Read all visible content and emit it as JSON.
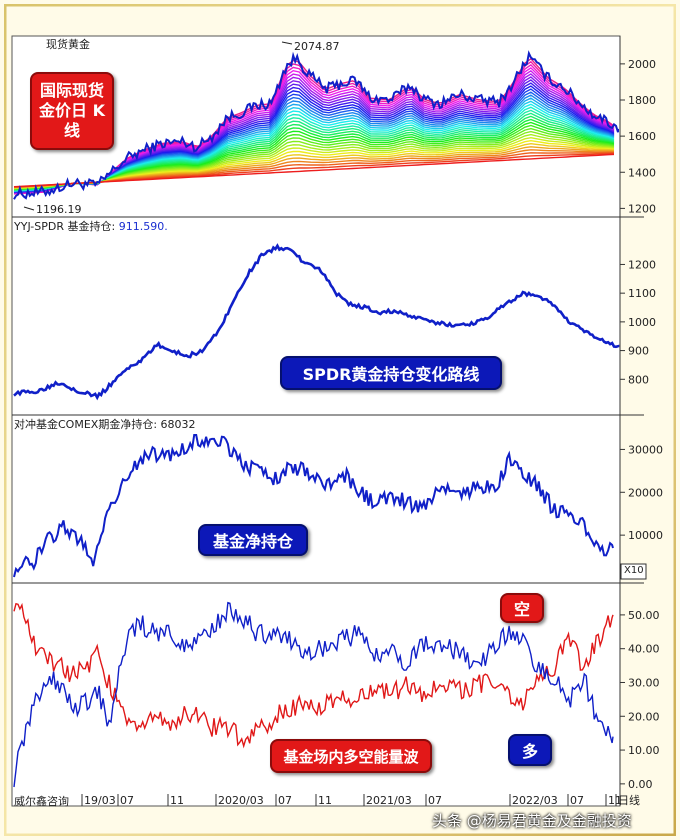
{
  "panels": {
    "gold": {
      "title": "现货黄金",
      "badge": "国际现货金价日 K线",
      "high_label": "2074.87",
      "low_label": "1196.19",
      "yticks": [
        "2000",
        "1800",
        "1600",
        "1400",
        "1200"
      ]
    },
    "spdr": {
      "title_prefix": "YYJ-SPDR 基金持仓:",
      "title_value": "911.590.",
      "badge": "SPDR黄金持仓变化路线",
      "yticks": [
        "1200",
        "1100",
        "1000",
        "900",
        "800"
      ]
    },
    "fund": {
      "title": "对冲基金COMEX期金净持仓: 68032",
      "badge": "基金净持仓",
      "yticks": [
        "30000",
        "20000",
        "10000"
      ],
      "scale_label": "X10"
    },
    "energy": {
      "badge": "基金场内多空能量波",
      "short_label": "空",
      "long_label": "多",
      "yticks": [
        "50.00",
        "40.00",
        "30.00",
        "20.00",
        "10.00",
        "0.00"
      ]
    }
  },
  "xaxis": {
    "source": "威尔鑫咨询",
    "ticks": [
      "19/03",
      "07",
      "11",
      "2020/03",
      "07",
      "11",
      "2021/03",
      "07",
      "2022/03",
      "07",
      "11",
      "日线"
    ]
  },
  "watermark": "头条 @杨易君黄金及金融投资",
  "colors": {
    "price": "#1020c8",
    "short": "#e01818",
    "long": "#1a2fd0"
  },
  "chart_data": [
    {
      "type": "line",
      "title": "现货黄金",
      "ylim": [
        1180,
        2110
      ],
      "x": [
        0,
        30,
        60,
        85,
        100,
        115,
        130,
        150,
        170,
        185,
        200,
        215,
        230,
        245,
        260,
        275,
        285,
        300,
        315,
        330,
        345,
        360,
        380,
        400,
        415,
        430,
        450,
        470,
        490,
        500,
        510,
        520,
        530,
        540,
        555,
        570,
        585,
        600,
        610
      ],
      "series": [
        {
          "name": "",
          "values": [
            1280,
            1290,
            1340,
            1330,
            1410,
            1480,
            1520,
            1560,
            1570,
            1540,
            1600,
            1700,
            1730,
            1770,
            1780,
            1990,
            2030,
            1930,
            1860,
            1890,
            1910,
            1810,
            1800,
            1880,
            1800,
            1780,
            1830,
            1800,
            1790,
            1860,
            1950,
            2040,
            1980,
            1920,
            1870,
            1790,
            1720,
            1680,
            1640
          ]
        }
      ]
    },
    {
      "type": "line",
      "title": "YYJ-SPDR 基金持仓",
      "ylim": [
        700,
        1320
      ],
      "x": [
        0,
        25,
        45,
        65,
        85,
        100,
        115,
        130,
        145,
        160,
        175,
        190,
        205,
        220,
        235,
        250,
        265,
        280,
        295,
        310,
        325,
        340,
        355,
        370,
        385,
        400,
        420,
        440,
        460,
        480,
        500,
        515,
        530,
        545,
        560,
        575,
        590,
        610
      ],
      "series": [
        {
          "name": "",
          "values": [
            750,
            760,
            790,
            760,
            740,
            790,
            840,
            870,
            920,
            900,
            880,
            900,
            960,
            1060,
            1160,
            1230,
            1260,
            1250,
            1200,
            1180,
            1100,
            1060,
            1050,
            1030,
            1040,
            1020,
            1000,
            990,
            990,
            1020,
            1070,
            1100,
            1090,
            1060,
            1000,
            970,
            940,
            911.59
          ]
        }
      ]
    },
    {
      "type": "line",
      "title": "对冲基金COMEX期金净持仓",
      "ylim": [
        0,
        35000
      ],
      "x": [
        0,
        20,
        35,
        50,
        65,
        80,
        95,
        110,
        125,
        140,
        155,
        170,
        185,
        200,
        215,
        230,
        245,
        260,
        275,
        290,
        305,
        320,
        335,
        350,
        365,
        380,
        395,
        410,
        425,
        440,
        455,
        470,
        485,
        500,
        515,
        530,
        545,
        560,
        575,
        590,
        605
      ],
      "series": [
        {
          "name": "",
          "values": [
            2000,
            4000,
            9000,
            12000,
            9000,
            4000,
            16000,
            22000,
            27000,
            29000,
            28000,
            30000,
            32000,
            33000,
            31000,
            27000,
            25000,
            23000,
            25000,
            26000,
            23000,
            22000,
            24000,
            20000,
            17000,
            19000,
            18000,
            16000,
            20000,
            21000,
            19000,
            22000,
            20000,
            28000,
            25000,
            21000,
            16000,
            15000,
            12000,
            7000,
            7000
          ]
        }
      ]
    },
    {
      "type": "line",
      "title": "基金场内多空能量波",
      "ylim": [
        -3,
        55
      ],
      "x": [
        0,
        12,
        24,
        36,
        48,
        60,
        72,
        84,
        96,
        110,
        125,
        140,
        155,
        170,
        185,
        200,
        215,
        230,
        245,
        260,
        275,
        290,
        305,
        320,
        335,
        350,
        365,
        380,
        395,
        410,
        425,
        440,
        455,
        470,
        485,
        500,
        515,
        530,
        545,
        560,
        575,
        590,
        605
      ],
      "series": [
        {
          "name": "空",
          "values": [
            54,
            48,
            38,
            37,
            35,
            32,
            34,
            38,
            30,
            20,
            18,
            19,
            18,
            20,
            21,
            17,
            16,
            14,
            15,
            19,
            22,
            24,
            23,
            24,
            25,
            26,
            28,
            27,
            29,
            26,
            28,
            29,
            28,
            30,
            29,
            26,
            24,
            31,
            33,
            45,
            34,
            42,
            50
          ]
        },
        {
          "name": "多",
          "values": [
            2,
            16,
            26,
            32,
            28,
            22,
            24,
            28,
            17,
            40,
            48,
            45,
            45,
            41,
            43,
            46,
            51,
            49,
            45,
            44,
            43,
            39,
            40,
            41,
            43,
            45,
            38,
            39,
            36,
            40,
            42,
            40,
            38,
            34,
            41,
            45,
            42,
            34,
            32,
            24,
            32,
            18,
            14
          ]
        }
      ]
    }
  ]
}
